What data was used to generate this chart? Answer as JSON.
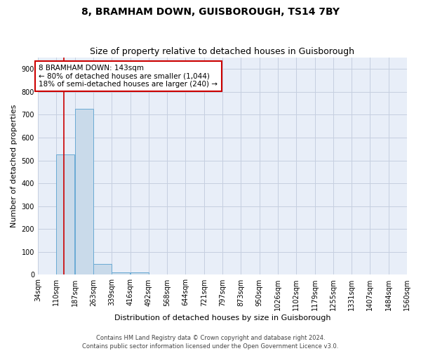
{
  "title": "8, BRAMHAM DOWN, GUISBOROUGH, TS14 7BY",
  "subtitle": "Size of property relative to detached houses in Guisborough",
  "xlabel": "Distribution of detached houses by size in Guisborough",
  "ylabel": "Number of detached properties",
  "bin_labels": [
    "34sqm",
    "110sqm",
    "187sqm",
    "263sqm",
    "339sqm",
    "416sqm",
    "492sqm",
    "568sqm",
    "644sqm",
    "721sqm",
    "797sqm",
    "873sqm",
    "950sqm",
    "1026sqm",
    "1102sqm",
    "1179sqm",
    "1255sqm",
    "1331sqm",
    "1407sqm",
    "1484sqm",
    "1560sqm"
  ],
  "bin_edges": [
    34,
    110,
    187,
    263,
    339,
    416,
    492,
    568,
    644,
    721,
    797,
    873,
    950,
    1026,
    1102,
    1179,
    1255,
    1331,
    1407,
    1484,
    1560
  ],
  "bar_heights": [
    0,
    527,
    727,
    47,
    12,
    10,
    0,
    0,
    0,
    0,
    0,
    0,
    0,
    0,
    0,
    0,
    0,
    0,
    0,
    0,
    0
  ],
  "bar_color": "#c9daea",
  "bar_edgecolor": "#6aaad4",
  "grid_color": "#c5cfe0",
  "bg_color": "#e8eef8",
  "fig_color": "#ffffff",
  "vline_x": 143,
  "vline_color": "#cc0000",
  "annotation_text": "8 BRAMHAM DOWN: 143sqm\n← 80% of detached houses are smaller (1,044)\n18% of semi-detached houses are larger (240) →",
  "annotation_box_color": "#ffffff",
  "annotation_box_edgecolor": "#cc0000",
  "ylim": [
    0,
    950
  ],
  "yticks": [
    0,
    100,
    200,
    300,
    400,
    500,
    600,
    700,
    800,
    900
  ],
  "footer": "Contains HM Land Registry data © Crown copyright and database right 2024.\nContains public sector information licensed under the Open Government Licence v3.0.",
  "title_fontsize": 10,
  "subtitle_fontsize": 9,
  "tick_fontsize": 7,
  "ylabel_fontsize": 8,
  "xlabel_fontsize": 8,
  "footer_fontsize": 6,
  "annot_fontsize": 7.5
}
